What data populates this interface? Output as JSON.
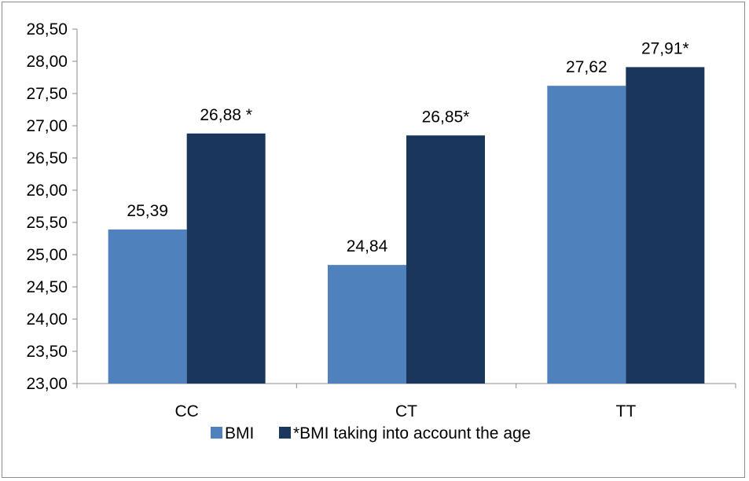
{
  "chart_data": {
    "type": "bar",
    "categories": [
      "CC",
      "CT",
      "TT"
    ],
    "series": [
      {
        "name": "BMI",
        "values": [
          25.39,
          24.84,
          27.62
        ],
        "labels": [
          "25,39",
          "24,84",
          "27,62"
        ],
        "color": "#4f81bd"
      },
      {
        "name": "*BMI taking into account the age",
        "values": [
          26.88,
          26.85,
          27.91
        ],
        "labels": [
          "26,88 *",
          "26,85*",
          "27,91*"
        ],
        "color": "#1b365d"
      }
    ],
    "ylim": [
      23.0,
      28.5
    ],
    "ytick_values": [
      23.0,
      23.5,
      24.0,
      24.5,
      25.0,
      25.5,
      26.0,
      26.5,
      27.0,
      27.5,
      28.0,
      28.5
    ],
    "ytick_labels": [
      "23,00",
      "23,50",
      "24,00",
      "24,50",
      "25,00",
      "25,50",
      "26,00",
      "26,50",
      "27,00",
      "27,50",
      "28,00",
      "28,50"
    ],
    "grid": false,
    "legend": {
      "placement": "bottom",
      "entries": [
        "BMI",
        "*BMI taking into account the age"
      ]
    },
    "title": "",
    "xlabel": "",
    "ylabel": ""
  }
}
